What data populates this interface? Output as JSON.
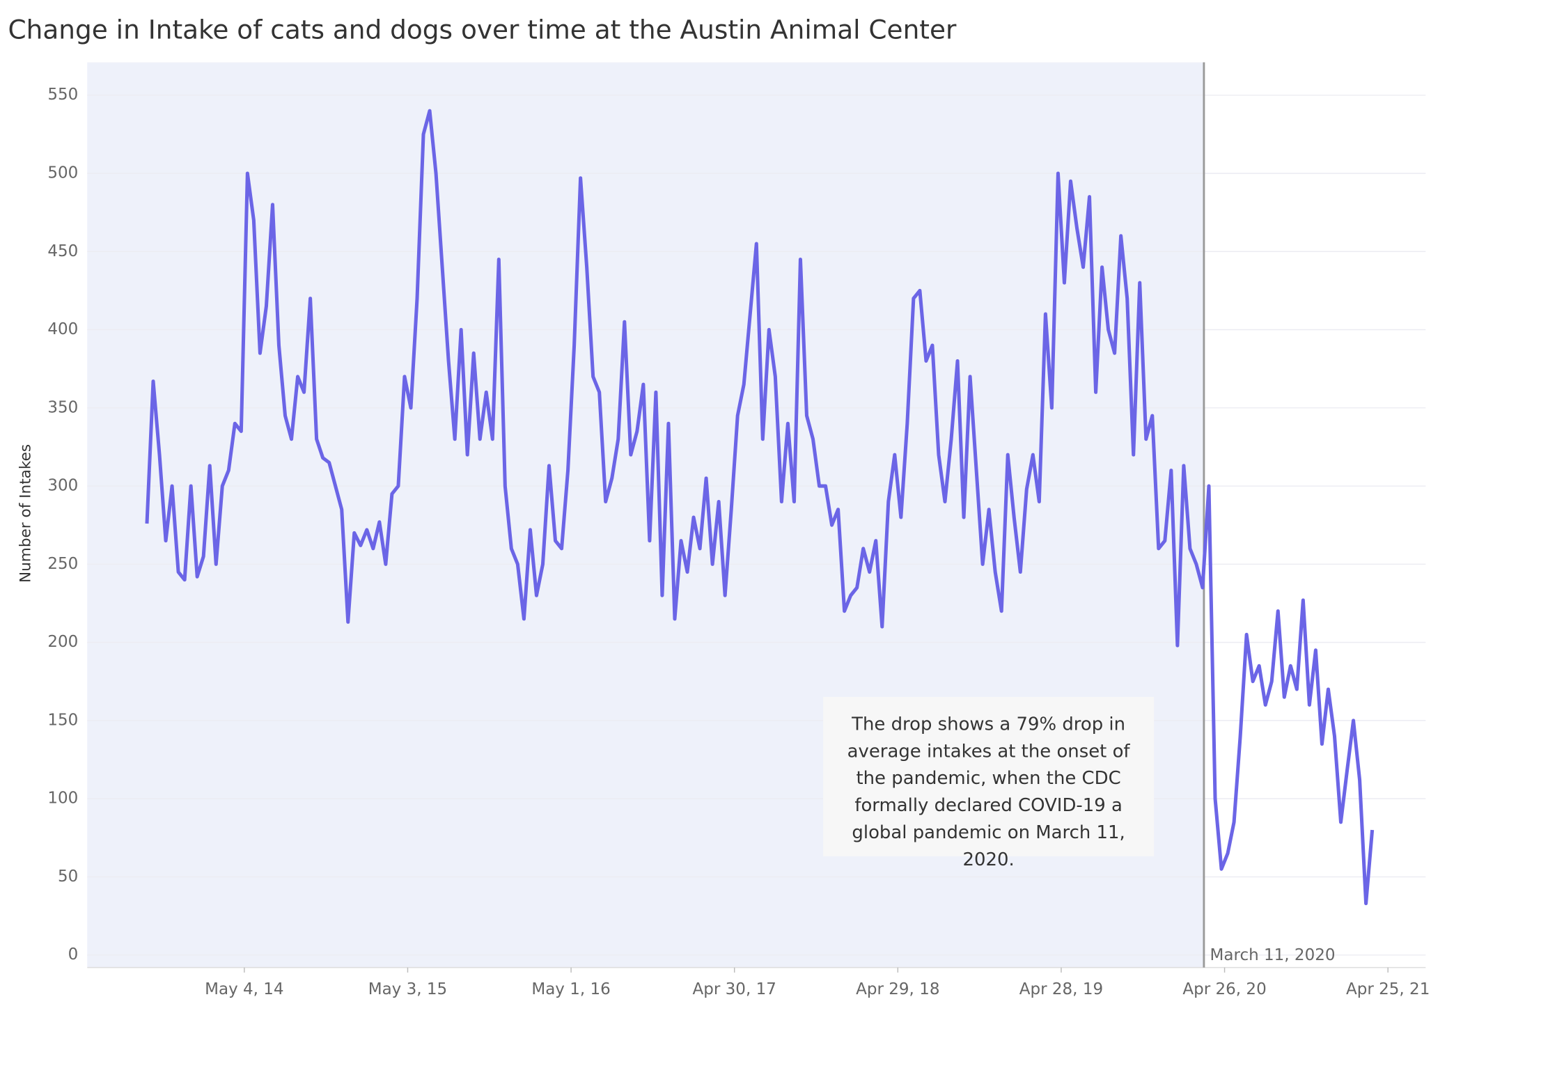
{
  "chart_data": {
    "type": "line",
    "title": "Change in Intake of cats and dogs over time at the Austin Animal Center",
    "y_label": "Number of Intakes",
    "x": [
      "2013-09-29",
      "2013-10-13",
      "2013-10-27",
      "2013-11-10",
      "2013-11-24",
      "2013-12-08",
      "2013-12-22",
      "2014-01-05",
      "2014-01-19",
      "2014-02-02",
      "2014-02-16",
      "2014-03-02",
      "2014-03-16",
      "2014-03-30",
      "2014-04-13",
      "2014-04-27",
      "2014-05-11",
      "2014-05-25",
      "2014-06-08",
      "2014-06-22",
      "2014-07-06",
      "2014-07-20",
      "2014-08-03",
      "2014-08-17",
      "2014-08-31",
      "2014-09-14",
      "2014-09-28",
      "2014-10-12",
      "2014-10-26",
      "2014-11-09",
      "2014-11-23",
      "2014-12-07",
      "2014-12-21",
      "2015-01-04",
      "2015-01-18",
      "2015-02-01",
      "2015-02-15",
      "2015-03-01",
      "2015-03-15",
      "2015-03-29",
      "2015-04-12",
      "2015-04-26",
      "2015-05-10",
      "2015-05-24",
      "2015-06-07",
      "2015-06-21",
      "2015-07-05",
      "2015-07-19",
      "2015-08-02",
      "2015-08-16",
      "2015-08-30",
      "2015-09-13",
      "2015-09-27",
      "2015-10-11",
      "2015-10-25",
      "2015-11-08",
      "2015-11-22",
      "2015-12-06",
      "2015-12-20",
      "2016-01-03",
      "2016-01-17",
      "2016-01-31",
      "2016-02-14",
      "2016-02-28",
      "2016-03-13",
      "2016-03-27",
      "2016-04-10",
      "2016-04-24",
      "2016-05-08",
      "2016-05-22",
      "2016-06-05",
      "2016-06-19",
      "2016-07-03",
      "2016-07-17",
      "2016-07-31",
      "2016-08-14",
      "2016-08-28",
      "2016-09-11",
      "2016-09-25",
      "2016-10-09",
      "2016-10-23",
      "2016-11-06",
      "2016-11-20",
      "2016-12-04",
      "2016-12-18",
      "2017-01-01",
      "2017-01-15",
      "2017-01-29",
      "2017-02-12",
      "2017-02-26",
      "2017-03-12",
      "2017-03-26",
      "2017-04-09",
      "2017-04-23",
      "2017-05-07",
      "2017-05-21",
      "2017-06-04",
      "2017-06-18",
      "2017-07-02",
      "2017-07-16",
      "2017-07-30",
      "2017-08-13",
      "2017-08-27",
      "2017-09-10",
      "2017-09-24",
      "2017-10-08",
      "2017-10-22",
      "2017-11-05",
      "2017-11-19",
      "2017-12-03",
      "2017-12-17",
      "2017-12-31",
      "2018-01-14",
      "2018-01-28",
      "2018-02-11",
      "2018-02-25",
      "2018-03-11",
      "2018-03-25",
      "2018-04-08",
      "2018-04-22",
      "2018-05-06",
      "2018-05-20",
      "2018-06-03",
      "2018-06-17",
      "2018-07-01",
      "2018-07-15",
      "2018-07-29",
      "2018-08-12",
      "2018-08-26",
      "2018-09-09",
      "2018-09-23",
      "2018-10-07",
      "2018-10-21",
      "2018-11-04",
      "2018-11-18",
      "2018-12-02",
      "2018-12-16",
      "2018-12-30",
      "2019-01-13",
      "2019-01-27",
      "2019-02-10",
      "2019-02-24",
      "2019-03-10",
      "2019-03-24",
      "2019-04-07",
      "2019-04-21",
      "2019-05-05",
      "2019-05-19",
      "2019-06-02",
      "2019-06-16",
      "2019-06-30",
      "2019-07-14",
      "2019-07-28",
      "2019-08-11",
      "2019-08-25",
      "2019-09-08",
      "2019-09-22",
      "2019-10-06",
      "2019-10-20",
      "2019-11-03",
      "2019-11-17",
      "2019-12-01",
      "2019-12-15",
      "2019-12-29",
      "2020-01-12",
      "2020-01-26",
      "2020-02-09",
      "2020-02-23",
      "2020-03-08",
      "2020-03-22",
      "2020-04-05",
      "2020-04-19",
      "2020-05-03",
      "2020-05-17",
      "2020-05-31",
      "2020-06-14",
      "2020-06-28",
      "2020-07-12",
      "2020-07-26",
      "2020-08-09",
      "2020-08-23",
      "2020-09-06",
      "2020-09-20",
      "2020-10-04",
      "2020-10-18",
      "2020-11-01",
      "2020-11-15",
      "2020-11-29",
      "2020-12-13",
      "2020-12-27",
      "2021-01-10",
      "2021-01-24",
      "2021-02-07",
      "2021-02-21",
      "2021-03-07",
      "2021-03-21"
    ],
    "series": [
      {
        "name": "Intakes",
        "color": "#6b65e6",
        "values": [
          276,
          367,
          320,
          265,
          300,
          245,
          240,
          300,
          242,
          255,
          313,
          250,
          300,
          310,
          340,
          335,
          500,
          470,
          385,
          415,
          480,
          390,
          345,
          330,
          370,
          360,
          420,
          330,
          318,
          315,
          300,
          285,
          213,
          270,
          262,
          272,
          260,
          277,
          250,
          295,
          300,
          370,
          350,
          420,
          525,
          540,
          500,
          440,
          380,
          330,
          400,
          320,
          385,
          330,
          360,
          330,
          445,
          300,
          260,
          250,
          215,
          272,
          230,
          250,
          313,
          265,
          260,
          310,
          390,
          497,
          440,
          370,
          360,
          290,
          305,
          330,
          405,
          320,
          335,
          365,
          265,
          360,
          230,
          340,
          215,
          265,
          245,
          280,
          260,
          305,
          250,
          290,
          230,
          285,
          345,
          365,
          410,
          455,
          330,
          400,
          370,
          290,
          340,
          290,
          445,
          345,
          330,
          300,
          300,
          275,
          285,
          220,
          230,
          235,
          260,
          245,
          265,
          210,
          290,
          320,
          280,
          340,
          420,
          425,
          380,
          390,
          320,
          290,
          330,
          380,
          280,
          370,
          310,
          250,
          285,
          245,
          220,
          320,
          280,
          245,
          298,
          320,
          290,
          410,
          350,
          500,
          430,
          495,
          465,
          440,
          485,
          360,
          440,
          400,
          385,
          460,
          420,
          320,
          430,
          330,
          345,
          260,
          265,
          310,
          198,
          313,
          260,
          250,
          235,
          300,
          100,
          55,
          65,
          85,
          140,
          205,
          175,
          185,
          160,
          175,
          220,
          165,
          185,
          170,
          227,
          160,
          195,
          135,
          170,
          140,
          85,
          118,
          150,
          112,
          33,
          80
        ]
      }
    ],
    "xlim": [
      "2013-05-19",
      "2021-07-18"
    ],
    "xticks": [
      {
        "value": "2014-05-04",
        "label": "May 4, 14"
      },
      {
        "value": "2015-05-03",
        "label": "May 3, 15"
      },
      {
        "value": "2016-05-01",
        "label": "May 1, 16"
      },
      {
        "value": "2017-04-30",
        "label": "Apr 30, 17"
      },
      {
        "value": "2018-04-29",
        "label": "Apr 29, 18"
      },
      {
        "value": "2019-04-28",
        "label": "Apr 28, 19"
      },
      {
        "value": "2020-04-26",
        "label": "Apr 26, 20"
      },
      {
        "value": "2021-04-25",
        "label": "Apr 25, 21"
      }
    ],
    "ylim": [
      -8,
      571
    ],
    "yticks": [
      0,
      50,
      100,
      150,
      200,
      250,
      300,
      350,
      400,
      450,
      500,
      550
    ],
    "grid": true,
    "reference_line": {
      "x": "2020-03-11",
      "label": "March 11, 2020"
    },
    "annotation": "The drop shows a 79% drop in average intakes at the onset of the pandemic, when the CDC formally declared COVID-19 a global pandemic on March 11, 2020."
  }
}
